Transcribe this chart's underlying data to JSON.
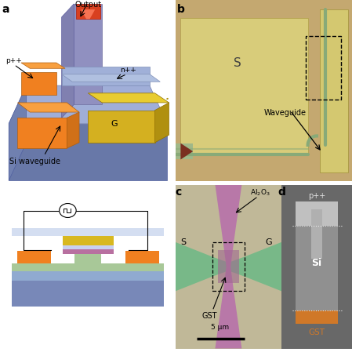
{
  "bg_color": "#ffffff",
  "panel_a": {
    "base_color": "#8898c8",
    "base_side_color": "#6878a8",
    "top_face_color": "#a0aed8",
    "channel_color": "#9898c0",
    "S_elec_color": "#f08020",
    "S_elec_top_color": "#f8a040",
    "G_elec_color": "#d4b020",
    "G_elec_top_color": "#e8cc30",
    "n_region_color": "#a0b0d8",
    "output_color": "#e05030",
    "output_label": "Output",
    "npp_label": "n++",
    "ppp_label": "p++",
    "G_label": "G",
    "si_waveguide_label": "Si waveguide"
  },
  "panel_b": {
    "bg_color": "#c4a870",
    "S_pad_color": "#d8cc7a",
    "G_pad_color": "#d4c870",
    "waveguide_color": "#88aa78",
    "coupler_bg": "#a0b888",
    "coupler_triangle": "#7a3020",
    "label_S": "S",
    "label_waveguide": "Waveguide"
  },
  "panel_c": {
    "bg_color": "#c0b898",
    "wg_h_color": "#78b888",
    "wg_v_color": "#b878a8",
    "GST_color": "#a06890",
    "Al2O3_label": "Al$_2$O$_3$",
    "S_label": "S",
    "G_label": "G",
    "GST_label": "GST",
    "scalebar": "5 μm"
  },
  "panel_d": {
    "bg_color": "#686868",
    "Si_color": "#a0a0a0",
    "Si_body_color": "#909090",
    "GST_color": "#d07828",
    "ppp_color": "#c0c0c0",
    "label_ppp": "p++",
    "label_Si": "Si",
    "label_GST": "GST"
  },
  "cross_section": {
    "substrate_color": "#7888b8",
    "sio2_color": "#90aad0",
    "si_color": "#a8c898",
    "left_contact_color": "#f08020",
    "right_contact_color": "#f08020",
    "gst_color": "#b870a0",
    "al2o3_color": "#c8d0f0",
    "gate_color": "#d8b820",
    "clad_color": "#b8c8e8"
  }
}
